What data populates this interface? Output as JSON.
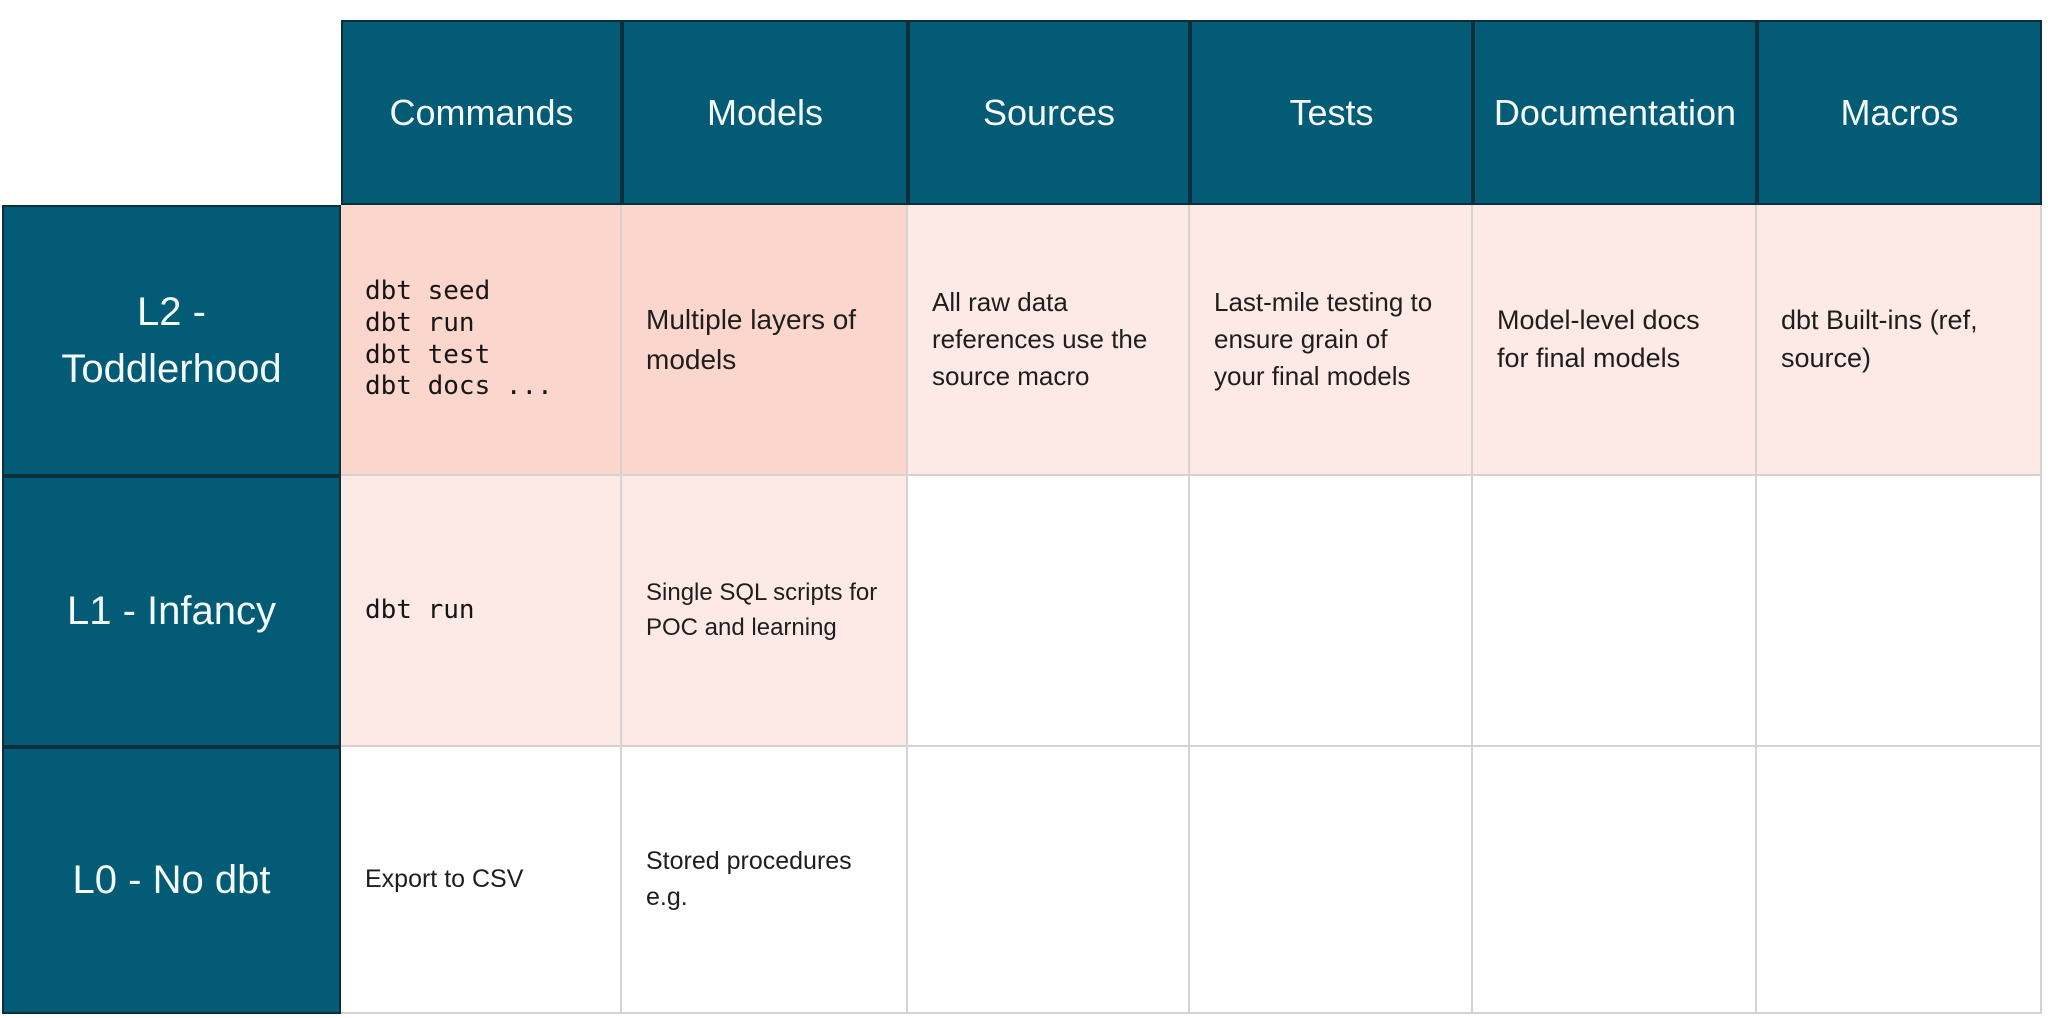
{
  "colors": {
    "teal_header": "#045B75",
    "teal_border": "#0B2F3B",
    "pink_strong": "#FAD6CD",
    "pink_light": "#FDE9E6",
    "grid_line": "#D5D2D1",
    "header_text": "#F4F9FA",
    "body_text": "#1E1E1C"
  },
  "matrix": {
    "column_headers": [
      "Commands",
      "Models",
      "Sources",
      "Tests",
      "Documentation",
      "Macros"
    ],
    "row_headers": [
      "L2 -\nToddlerhood",
      "L1 - Infancy",
      "L0 - No dbt"
    ],
    "cells": {
      "l2": {
        "commands": "dbt seed\ndbt run\ndbt test\ndbt docs ...",
        "models": "Multiple layers of\nmodels",
        "sources": "All raw data\nreferences use the\nsource macro",
        "tests": "Last-mile testing to\nensure grain of\nyour final models",
        "documentation": "Model-level docs\nfor final models",
        "macros": "dbt Built-ins (ref,\nsource)"
      },
      "l1": {
        "commands": "dbt run",
        "models": "Single SQL scripts for\nPOC and learning",
        "sources": "",
        "tests": "",
        "documentation": "",
        "macros": ""
      },
      "l0": {
        "commands": "Export to CSV",
        "models": "Stored procedures\ne.g.",
        "sources": "",
        "tests": "",
        "documentation": "",
        "macros": ""
      }
    }
  }
}
